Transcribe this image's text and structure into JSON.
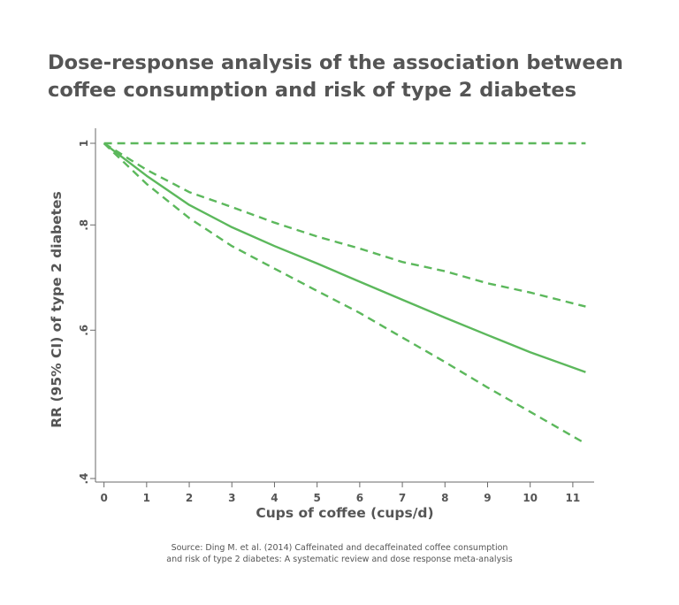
{
  "title_lines": [
    "Dose-response analysis of the association between",
    "coffee consumption and risk of type 2 diabetes"
  ],
  "source_lines": [
    "Source: Ding M. et al. (2014) Caffeinated and decaffeinated coffee consumption",
    "and risk of type 2 diabetes: A systematic review and dose response meta-analysis"
  ],
  "chart_data": {
    "type": "line",
    "title": "Dose-response analysis of the association between coffee consumption and risk of type 2 diabetes",
    "xlabel": "Cups of coffee (cups/d)",
    "ylabel": "RR (95% CI) of type 2 diabetes",
    "x_ticks": [
      0,
      1,
      2,
      3,
      4,
      5,
      6,
      7,
      8,
      9,
      10,
      11
    ],
    "y_ticks": [
      {
        "value": 0.4,
        "label": ".4"
      },
      {
        "value": 0.6,
        "label": ".6"
      },
      {
        "value": 0.8,
        "label": ".8"
      },
      {
        "value": 1.0,
        "label": "1"
      }
    ],
    "xlim": [
      -0.2,
      11.5
    ],
    "ylim": [
      0.4,
      1.0
    ],
    "y_scale": "log",
    "grid": false,
    "color": "#5cb85c",
    "series": [
      {
        "style": "solid",
        "x": [
          0,
          1,
          2,
          3,
          4,
          5,
          6,
          7,
          8,
          9,
          10,
          11.3
        ],
        "y": [
          1.0,
          0.915,
          0.845,
          0.795,
          0.755,
          0.72,
          0.685,
          0.652,
          0.621,
          0.592,
          0.565,
          0.535
        ]
      },
      {
        "style": "dashed",
        "x": [
          0,
          1,
          2,
          3,
          4,
          5,
          6,
          7,
          8,
          9,
          10,
          11.3
        ],
        "y": [
          1.0,
          0.93,
          0.875,
          0.84,
          0.805,
          0.775,
          0.75,
          0.723,
          0.705,
          0.682,
          0.665,
          0.64
        ]
      },
      {
        "style": "dashed",
        "x": [
          0,
          1,
          2,
          3,
          4,
          5,
          6,
          7,
          8,
          9,
          10,
          11.3
        ],
        "y": [
          1.0,
          0.895,
          0.815,
          0.755,
          0.71,
          0.668,
          0.629,
          0.588,
          0.55,
          0.513,
          0.48,
          0.44
        ]
      },
      {
        "style": "dashed",
        "x": [
          0,
          11.3
        ],
        "y": [
          1.0,
          1.0
        ]
      }
    ]
  }
}
